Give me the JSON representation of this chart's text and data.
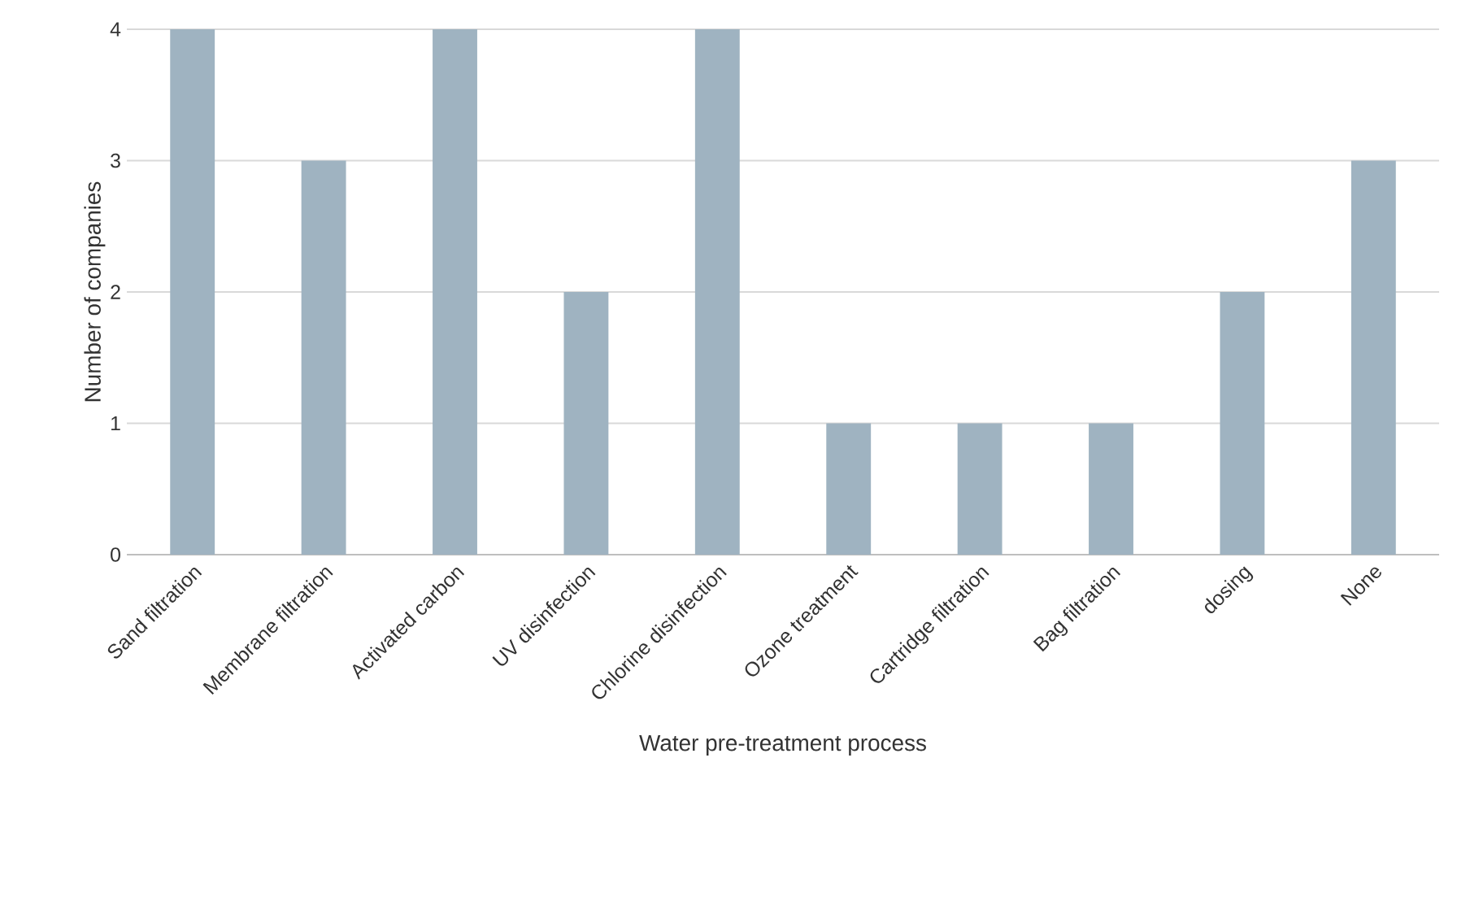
{
  "chart_data": {
    "type": "bar",
    "xlabel": "Water pre-treatment process",
    "ylabel": "Number of companies",
    "categories": [
      "Sand filtration",
      "Membrane filtration",
      "Activated carbon",
      "UV disinfection",
      "Chlorine disinfection",
      "Ozone treatment",
      "Cartridge filtration",
      "Bag filtration",
      "dosing",
      "None"
    ],
    "values": [
      4,
      3,
      4,
      2,
      4,
      1,
      1,
      1,
      2,
      3
    ],
    "color": "#9fb3c1",
    "ylim": [
      0,
      4
    ],
    "yticks": [
      0,
      1,
      2,
      3,
      4
    ],
    "grid": "y"
  }
}
